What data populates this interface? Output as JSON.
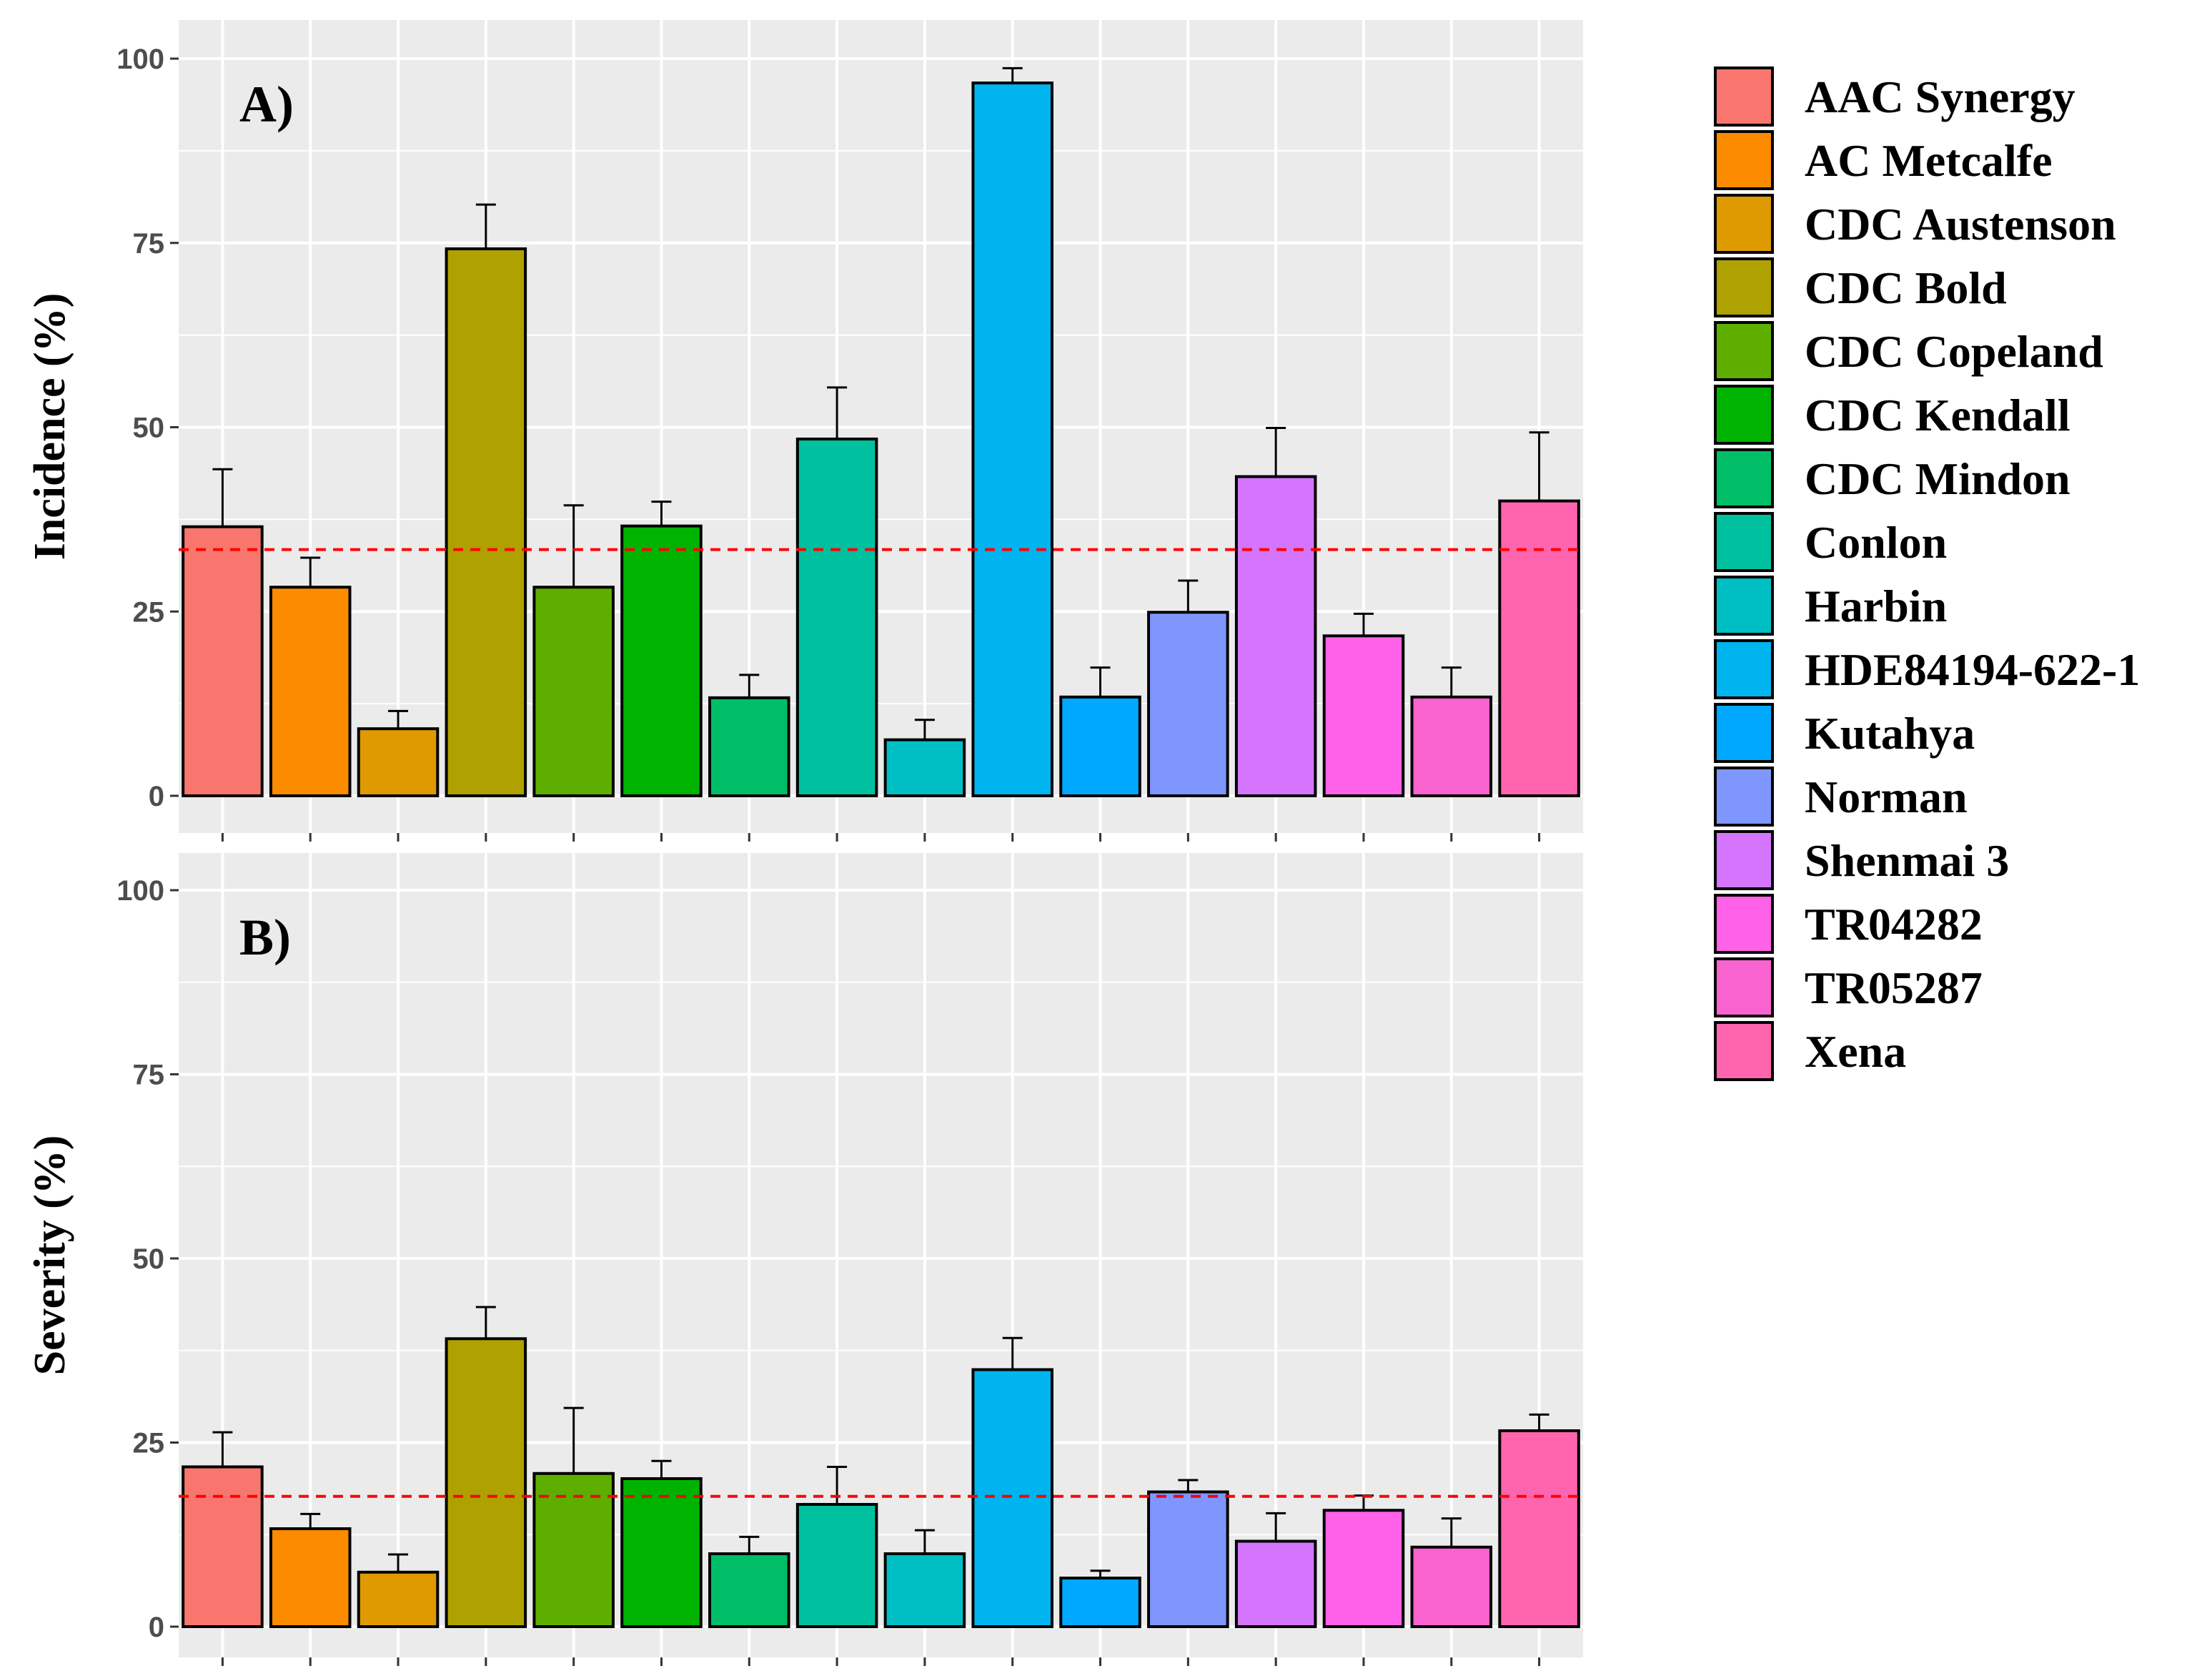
{
  "chart_data": [
    {
      "type": "bar",
      "panel_label": "A)",
      "ylabel": "Incidence (%)",
      "xlabel": "",
      "ylim": [
        0,
        105
      ],
      "yticks": [
        0,
        25,
        50,
        75,
        100
      ],
      "ytick_labels": [
        "0",
        "25",
        "50",
        "75",
        "100"
      ],
      "categories": [
        "AAC Synergy",
        "AC Metcalfe",
        "CDC Austenson",
        "CDC Bold",
        "CDC Copeland",
        "CDC Kendall",
        "CDC Mindon",
        "Conlon",
        "Harbin",
        "HDE84194-622-1",
        "Kutahya",
        "Norman",
        "Shenmai 3",
        "TR04282",
        "TR05287",
        "Xena"
      ],
      "values": [
        36.5,
        28.3,
        9.1,
        74.2,
        28.3,
        36.6,
        13.3,
        48.4,
        7.6,
        96.7,
        13.4,
        24.9,
        43.3,
        21.7,
        13.4,
        40.0
      ],
      "errors": [
        7.8,
        4.0,
        2.4,
        6.0,
        11.1,
        3.3,
        3.1,
        7.0,
        2.7,
        2.0,
        4.0,
        4.3,
        6.6,
        3.0,
        4.0,
        9.3
      ],
      "reference_line": 33.4,
      "grid": true
    },
    {
      "type": "bar",
      "panel_label": "B)",
      "ylabel": "Severity (%)",
      "xlabel": "",
      "ylim": [
        0,
        105
      ],
      "yticks": [
        0,
        25,
        50,
        75,
        100
      ],
      "ytick_labels": [
        "0",
        "25",
        "50",
        "75",
        "100"
      ],
      "categories": [
        "AAC Synergy",
        "AC Metcalfe",
        "CDC Austenson",
        "CDC Bold",
        "CDC Copeland",
        "CDC Kendall",
        "CDC Mindon",
        "Conlon",
        "Harbin",
        "HDE84194-622-1",
        "Kutahya",
        "Norman",
        "Shenmai 3",
        "TR04282",
        "TR05287",
        "Xena"
      ],
      "values": [
        21.7,
        13.3,
        7.4,
        39.1,
        20.8,
        20.1,
        9.9,
        16.6,
        9.9,
        34.9,
        6.6,
        18.3,
        11.6,
        15.8,
        10.8,
        26.6
      ],
      "errors": [
        4.7,
        2.0,
        2.4,
        4.3,
        8.9,
        2.4,
        2.3,
        5.1,
        3.2,
        4.3,
        1.0,
        1.6,
        3.8,
        2.0,
        3.9,
        2.2
      ],
      "reference_line": 17.7,
      "grid": true
    }
  ],
  "legend": {
    "entries": [
      {
        "label": "AAC Synergy",
        "color": "#F8766D"
      },
      {
        "label": "AC Metcalfe",
        "color": "#FC8B00"
      },
      {
        "label": "CDC Austenson",
        "color": "#DE9A00"
      },
      {
        "label": "CDC Bold",
        "color": "#AFA100"
      },
      {
        "label": "CDC Copeland",
        "color": "#5EAE00"
      },
      {
        "label": "CDC Kendall",
        "color": "#00B300"
      },
      {
        "label": "CDC Mindon",
        "color": "#00BE67"
      },
      {
        "label": "Conlon",
        "color": "#00C19F"
      },
      {
        "label": "Harbin",
        "color": "#00BFC4"
      },
      {
        "label": "HDE84194-622-1",
        "color": "#00B4EF"
      },
      {
        "label": "Kutahya",
        "color": "#00A9FF"
      },
      {
        "label": "Norman",
        "color": "#7F96FF"
      },
      {
        "label": "Shenmai 3",
        "color": "#D575FE"
      },
      {
        "label": "TR04282",
        "color": "#FF61E8"
      },
      {
        "label": "TR05287",
        "color": "#F863D0"
      },
      {
        "label": "Xena",
        "color": "#FF65AE"
      }
    ]
  },
  "styles": {
    "panel_background": "#EBEBEB",
    "gridline_color": "#FFFFFF",
    "reference_line_color": "#FF0000",
    "bar_outline_color": "#000000"
  }
}
